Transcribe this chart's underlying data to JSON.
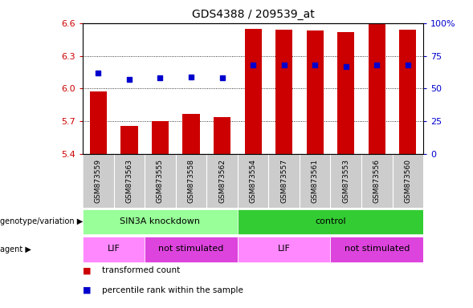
{
  "title": "GDS4388 / 209539_at",
  "samples": [
    "GSM873559",
    "GSM873563",
    "GSM873555",
    "GSM873558",
    "GSM873562",
    "GSM873554",
    "GSM873557",
    "GSM873561",
    "GSM873553",
    "GSM873556",
    "GSM873560"
  ],
  "transformed_count": [
    5.97,
    5.66,
    5.7,
    5.77,
    5.74,
    6.55,
    6.54,
    6.53,
    6.52,
    6.59,
    6.54
  ],
  "percentile_rank": [
    62,
    57,
    58,
    59,
    58,
    68,
    68,
    68,
    67,
    68,
    68
  ],
  "ylim": [
    5.4,
    6.6
  ],
  "yticks_left": [
    5.4,
    5.7,
    6.0,
    6.3,
    6.6
  ],
  "yticks_right": [
    0,
    25,
    50,
    75,
    100
  ],
  "percentile_ylim": [
    0,
    100
  ],
  "bar_color": "#cc0000",
  "dot_color": "#0000cc",
  "genotype_groups": [
    {
      "label": "SIN3A knockdown",
      "start": 0,
      "end": 5,
      "color": "#99ff99"
    },
    {
      "label": "control",
      "start": 5,
      "end": 11,
      "color": "#33cc33"
    }
  ],
  "agent_groups": [
    {
      "label": "LIF",
      "start": 0,
      "end": 2,
      "color": "#ff88ff"
    },
    {
      "label": "not stimulated",
      "start": 2,
      "end": 5,
      "color": "#dd44dd"
    },
    {
      "label": "LIF",
      "start": 5,
      "end": 8,
      "color": "#ff88ff"
    },
    {
      "label": "not stimulated",
      "start": 8,
      "end": 11,
      "color": "#dd44dd"
    }
  ],
  "legend_items": [
    {
      "label": "transformed count",
      "color": "#cc0000"
    },
    {
      "label": "percentile rank within the sample",
      "color": "#0000cc"
    }
  ],
  "background_color": "#ffffff",
  "grid_color": "#000000",
  "tick_label_color_left": "#cc0000",
  "tick_label_color_right": "#0000cc",
  "sample_bg_color": "#cccccc",
  "left_label_color": "#888888"
}
